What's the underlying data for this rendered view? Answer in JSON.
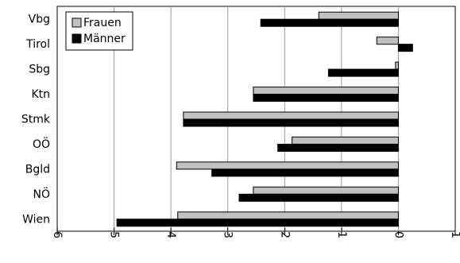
{
  "chart_data": {
    "type": "bar",
    "orientation": "horizontal",
    "categories": [
      "Vbg",
      "Tirol",
      "Sbg",
      "Ktn",
      "Stmk",
      "OÖ",
      "Bgld",
      "NÖ",
      "Wien"
    ],
    "series": [
      {
        "name": "Frauen",
        "color": "#c0c0c0",
        "values": [
          -1.4,
          -0.38,
          -0.05,
          -2.55,
          -3.78,
          -1.87,
          -3.9,
          -2.55,
          -3.88
        ]
      },
      {
        "name": "Männer",
        "color": "#000000",
        "values": [
          -2.42,
          0.25,
          -1.23,
          -2.55,
          -3.78,
          -2.12,
          -3.28,
          -2.8,
          -4.95
        ]
      }
    ],
    "xlim": [
      -6,
      1
    ],
    "xticks": [
      -6,
      -5,
      -4,
      -3,
      -2,
      -1,
      0,
      1
    ],
    "xtick_labels": [
      "-6",
      "-5",
      "-4",
      "-3",
      "-2",
      "-1",
      "0",
      "1"
    ],
    "grid": "vertical",
    "legend_position": "top-left",
    "title": "",
    "xlabel": "",
    "ylabel": ""
  }
}
